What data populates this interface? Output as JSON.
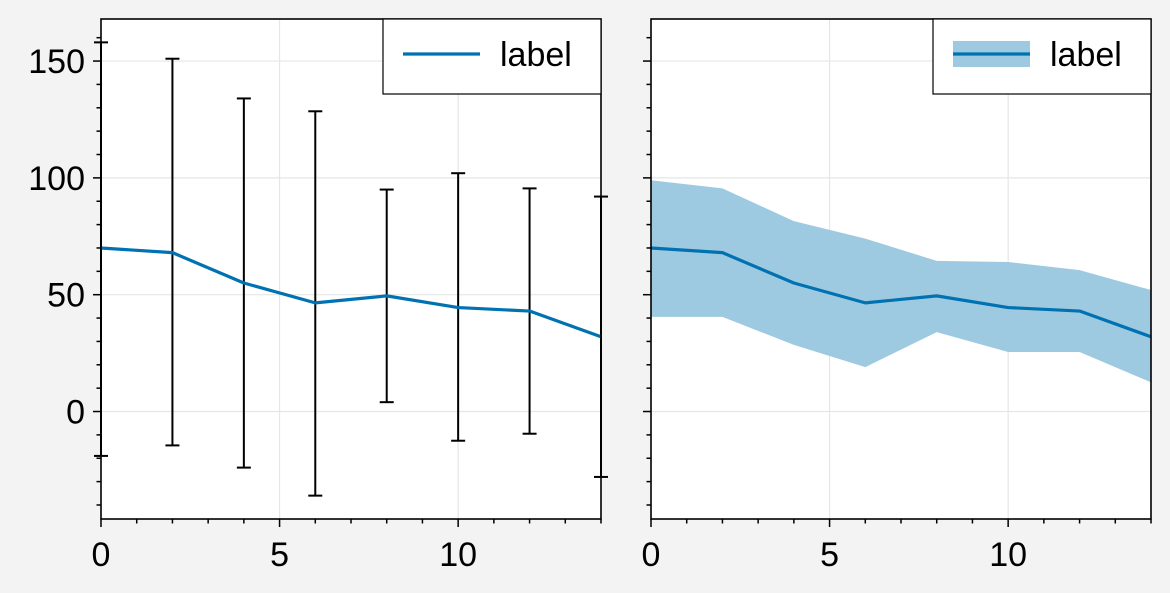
{
  "chart_data": [
    {
      "type": "line",
      "variant": "errorbar",
      "x": [
        0,
        2,
        4,
        6,
        8,
        10,
        12,
        14
      ],
      "series": [
        {
          "name": "label",
          "values": [
            70,
            68,
            55,
            46.5,
            49.5,
            44.5,
            43,
            32
          ],
          "err_low": [
            -19,
            -14.5,
            -24,
            -36,
            4,
            -12.5,
            -9.5,
            -28
          ],
          "err_high": [
            158,
            151,
            134,
            128.5,
            95,
            102,
            95.5,
            92
          ],
          "color": "#0072b2"
        }
      ],
      "xlim": [
        0,
        14
      ],
      "ylim": [
        -46,
        168
      ],
      "xticks": [
        "0",
        "5",
        "10"
      ],
      "yticks": [
        "0",
        "50",
        "100",
        "150"
      ],
      "grid": true,
      "legend": "top-right"
    },
    {
      "type": "area",
      "variant": "shaded-band",
      "x": [
        0,
        2,
        4,
        6,
        8,
        10,
        12,
        14
      ],
      "series": [
        {
          "name": "label",
          "values": [
            70,
            68,
            55,
            46.5,
            49.5,
            44.5,
            43,
            32
          ],
          "band_low": [
            40.5,
            40.5,
            28.5,
            19,
            34,
            25.5,
            25.5,
            12.5
          ],
          "band_high": [
            99,
            95.5,
            81.5,
            74,
            64.5,
            64,
            60.5,
            52
          ],
          "color": "#0072b2",
          "fill_color": "#9ecae1"
        }
      ],
      "xlim": [
        0,
        14
      ],
      "ylim": [
        -46,
        168
      ],
      "xticks": [
        "0",
        "5",
        "10"
      ],
      "grid": true,
      "legend": "top-right"
    }
  ]
}
